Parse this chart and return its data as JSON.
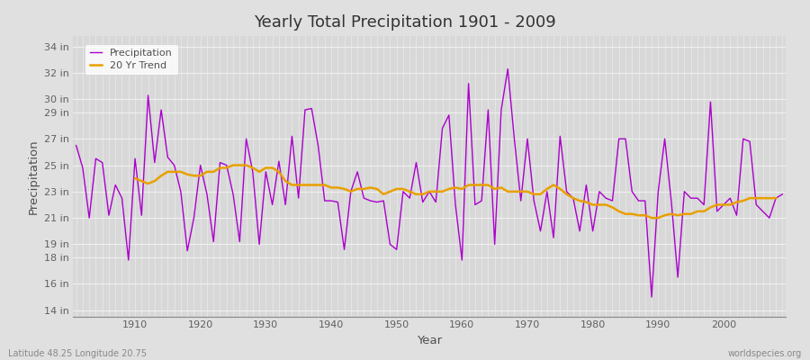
{
  "title": "Yearly Total Precipitation 1901 - 2009",
  "xlabel": "Year",
  "ylabel": "Precipitation",
  "footnote_left": "Latitude 48.25 Longitude 20.75",
  "footnote_right": "worldspecies.org",
  "legend_entries": [
    "Precipitation",
    "20 Yr Trend"
  ],
  "precip_color": "#AA00CC",
  "trend_color": "#E8A000",
  "fig_bg_color": "#E0E0E0",
  "plot_bg_color": "#D8D8D8",
  "grid_color": "#F0F0F0",
  "years": [
    1901,
    1902,
    1903,
    1904,
    1905,
    1906,
    1907,
    1908,
    1909,
    1910,
    1911,
    1912,
    1913,
    1914,
    1915,
    1916,
    1917,
    1918,
    1919,
    1920,
    1921,
    1922,
    1923,
    1924,
    1925,
    1926,
    1927,
    1928,
    1929,
    1930,
    1931,
    1932,
    1933,
    1934,
    1935,
    1936,
    1937,
    1938,
    1939,
    1940,
    1941,
    1942,
    1943,
    1944,
    1945,
    1946,
    1947,
    1948,
    1949,
    1950,
    1951,
    1952,
    1953,
    1954,
    1955,
    1956,
    1957,
    1958,
    1959,
    1960,
    1961,
    1962,
    1963,
    1964,
    1965,
    1966,
    1967,
    1968,
    1969,
    1970,
    1971,
    1972,
    1973,
    1974,
    1975,
    1976,
    1977,
    1978,
    1979,
    1980,
    1981,
    1982,
    1983,
    1984,
    1985,
    1986,
    1987,
    1988,
    1989,
    1990,
    1991,
    1992,
    1993,
    1994,
    1995,
    1996,
    1997,
    1998,
    1999,
    2000,
    2001,
    2002,
    2003,
    2004,
    2005,
    2006,
    2007,
    2008,
    2009
  ],
  "precip_in": [
    26.5,
    24.8,
    21.0,
    25.5,
    25.2,
    21.2,
    23.5,
    22.5,
    17.8,
    25.5,
    21.2,
    30.3,
    25.2,
    29.2,
    25.6,
    25.0,
    23.0,
    18.5,
    21.0,
    25.0,
    22.8,
    19.2,
    25.2,
    25.0,
    22.8,
    19.2,
    27.0,
    24.5,
    19.0,
    24.5,
    22.0,
    25.3,
    22.0,
    27.2,
    22.5,
    29.2,
    29.3,
    26.5,
    22.3,
    22.3,
    22.2,
    18.6,
    23.0,
    24.5,
    22.5,
    22.3,
    22.2,
    22.3,
    19.0,
    18.6,
    23.0,
    22.5,
    25.2,
    22.2,
    23.0,
    22.2,
    27.8,
    28.8,
    22.0,
    17.8,
    31.2,
    22.0,
    22.3,
    29.2,
    19.0,
    29.2,
    32.3,
    27.0,
    22.3,
    27.0,
    22.3,
    20.0,
    23.0,
    19.5,
    27.2,
    23.0,
    22.5,
    20.0,
    23.5,
    20.0,
    23.0,
    22.5,
    22.3,
    27.0,
    27.0,
    23.0,
    22.3,
    22.3,
    15.0,
    23.0,
    27.0,
    22.3,
    16.5,
    23.0,
    22.5,
    22.5,
    22.0,
    29.8,
    21.5,
    22.0,
    22.5,
    21.2,
    27.0,
    26.8,
    22.0,
    21.5,
    21.0,
    22.5,
    22.8
  ],
  "trend_in": [
    null,
    null,
    null,
    null,
    null,
    null,
    null,
    null,
    null,
    24.0,
    23.8,
    23.6,
    23.8,
    24.2,
    24.5,
    24.5,
    24.5,
    24.3,
    24.2,
    24.2,
    24.5,
    24.5,
    24.8,
    24.8,
    25.0,
    25.0,
    25.0,
    24.8,
    24.5,
    24.8,
    24.8,
    24.5,
    23.8,
    23.5,
    23.5,
    23.5,
    23.5,
    23.5,
    23.5,
    23.3,
    23.3,
    23.2,
    23.0,
    23.2,
    23.2,
    23.3,
    23.2,
    22.8,
    23.0,
    23.2,
    23.2,
    23.0,
    22.8,
    22.8,
    23.0,
    23.0,
    23.0,
    23.2,
    23.3,
    23.2,
    23.5,
    23.5,
    23.5,
    23.5,
    23.2,
    23.3,
    23.0,
    23.0,
    23.0,
    23.0,
    22.8,
    22.8,
    23.2,
    23.5,
    23.2,
    22.8,
    22.5,
    22.3,
    22.2,
    22.0,
    22.0,
    22.0,
    21.8,
    21.5,
    21.3,
    21.3,
    21.2,
    21.2,
    21.0,
    21.0,
    21.2,
    21.3,
    21.2,
    21.3,
    21.3,
    21.5,
    21.5,
    21.8,
    22.0,
    22.0,
    22.0,
    22.2,
    22.3,
    22.5,
    22.5,
    22.5,
    22.5,
    22.5,
    null
  ],
  "yticks": [
    14,
    16,
    18,
    19,
    21,
    23,
    25,
    27,
    29,
    30,
    32,
    34
  ],
  "ylim": [
    13.5,
    34.8
  ],
  "xlim": [
    1900.5,
    2009.5
  ],
  "xticks": [
    1910,
    1920,
    1930,
    1940,
    1950,
    1960,
    1970,
    1980,
    1990,
    2000
  ]
}
